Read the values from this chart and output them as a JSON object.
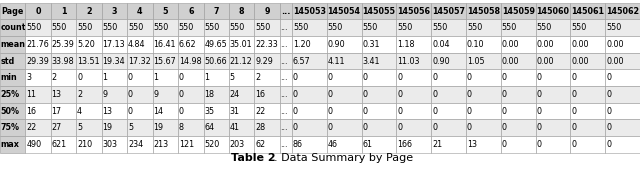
{
  "columns": [
    "Page",
    "0",
    "1",
    "2",
    "3",
    "4",
    "5",
    "6",
    "7",
    "8",
    "9",
    "...",
    "145053",
    "145054",
    "145055",
    "145056",
    "145057",
    "145058",
    "145059",
    "145060",
    "145061",
    "145062"
  ],
  "rows": {
    "count": [
      "550",
      "550",
      "550",
      "550",
      "550",
      "550",
      "550",
      "550",
      "550",
      "550",
      "...",
      "550",
      "550",
      "550",
      "550",
      "550",
      "550",
      "550",
      "550",
      "550",
      "550"
    ],
    "mean": [
      "21.76",
      "25.39",
      "5.20",
      "17.13",
      "4.84",
      "16.41",
      "6.62",
      "49.65",
      "35.01",
      "22.33",
      "...",
      "1.20",
      "0.90",
      "0.31",
      "1.18",
      "0.04",
      "0.10",
      "0.00",
      "0.00",
      "0.00",
      "0.00"
    ],
    "std": [
      "29.39",
      "33.98",
      "13.51",
      "19.34",
      "17.32",
      "15.67",
      "14.98",
      "50.66",
      "21.12",
      "9.29",
      "...",
      "6.57",
      "4.11",
      "3.41",
      "11.03",
      "0.90",
      "1.05",
      "0.00",
      "0.00",
      "0.00",
      "0.00"
    ],
    "min": [
      "3",
      "2",
      "0",
      "1",
      "0",
      "1",
      "0",
      "1",
      "5",
      "2",
      "...",
      "0",
      "0",
      "0",
      "0",
      "0",
      "0",
      "0",
      "0",
      "0",
      "0"
    ],
    "25%": [
      "11",
      "13",
      "2",
      "9",
      "0",
      "9",
      "0",
      "18",
      "24",
      "16",
      "...",
      "0",
      "0",
      "0",
      "0",
      "0",
      "0",
      "0",
      "0",
      "0",
      "0"
    ],
    "50%": [
      "16",
      "17",
      "4",
      "13",
      "0",
      "14",
      "0",
      "35",
      "31",
      "22",
      "...",
      "0",
      "0",
      "0",
      "0",
      "0",
      "0",
      "0",
      "0",
      "0",
      "0"
    ],
    "75%": [
      "22",
      "27",
      "5",
      "19",
      "5",
      "19",
      "8",
      "64",
      "41",
      "28",
      "...",
      "0",
      "0",
      "0",
      "0",
      "0",
      "0",
      "0",
      "0",
      "0",
      "0"
    ],
    "max": [
      "490",
      "621",
      "210",
      "303",
      "234",
      "213",
      "121",
      "520",
      "203",
      "62",
      "...",
      "86",
      "46",
      "61",
      "166",
      "21",
      "13",
      "0",
      "0",
      "0",
      "0"
    ]
  },
  "row_order": [
    "count",
    "mean",
    "std",
    "min",
    "25%",
    "50%",
    "75%",
    "max"
  ],
  "title_bold": "Table 2",
  "title_normal": ". Data Summary by Page",
  "header_bg": "#d0d0d0",
  "row_bg_odd": "#ebebeb",
  "row_bg_even": "#ffffff",
  "font_size": 5.8,
  "title_fontsize": 8.0
}
